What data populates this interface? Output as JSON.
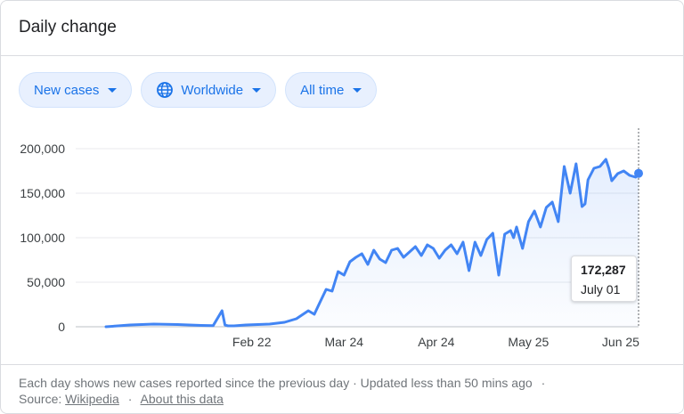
{
  "header": {
    "title": "Daily change"
  },
  "filters": [
    {
      "label": "New cases",
      "icon": ""
    },
    {
      "label": "Worldwide",
      "icon": "globe-icon"
    },
    {
      "label": "All time",
      "icon": ""
    }
  ],
  "colors": {
    "line": "#4285f4",
    "chip_bg": "#e8f0fe",
    "chip_text": "#1a73e8",
    "grid": "#e8eaed",
    "axis_text": "#3c4043"
  },
  "chart_data": {
    "type": "line",
    "title": "",
    "xlabel": "",
    "ylabel": "",
    "ylim": [
      0,
      200000
    ],
    "y_ticks": [
      "200,000",
      "150,000",
      "100,000",
      "50,000",
      "0"
    ],
    "x_ticks": [
      "Feb 22",
      "Mar 24",
      "Apr 24",
      "May 25",
      "Jun 25"
    ],
    "x_range": [
      "2020-01-04",
      "2020-07-01"
    ],
    "grid": true,
    "series": [
      {
        "x": [
          "2020-01-04",
          "2020-01-08",
          "2020-01-12",
          "2020-01-16",
          "2020-01-20",
          "2020-01-24",
          "2020-01-28",
          "2020-02-01",
          "2020-02-05",
          "2020-02-09",
          "2020-02-12",
          "2020-02-13",
          "2020-02-14",
          "2020-02-16",
          "2020-02-20",
          "2020-02-24",
          "2020-02-28",
          "2020-03-04",
          "2020-03-08",
          "2020-03-12",
          "2020-03-14",
          "2020-03-16",
          "2020-03-18",
          "2020-03-20",
          "2020-03-22",
          "2020-03-24",
          "2020-03-26",
          "2020-03-28",
          "2020-03-30",
          "2020-04-01",
          "2020-04-03",
          "2020-04-05",
          "2020-04-07",
          "2020-04-09",
          "2020-04-11",
          "2020-04-13",
          "2020-04-15",
          "2020-04-17",
          "2020-04-19",
          "2020-04-21",
          "2020-04-23",
          "2020-04-25",
          "2020-04-27",
          "2020-04-29",
          "2020-05-01",
          "2020-05-03",
          "2020-05-05",
          "2020-05-07",
          "2020-05-09",
          "2020-05-11",
          "2020-05-13",
          "2020-05-15",
          "2020-05-17",
          "2020-05-19",
          "2020-05-20",
          "2020-05-21",
          "2020-05-23",
          "2020-05-25",
          "2020-05-27",
          "2020-05-29",
          "2020-05-31",
          "2020-06-02",
          "2020-06-04",
          "2020-06-06",
          "2020-06-08",
          "2020-06-10",
          "2020-06-12",
          "2020-06-13",
          "2020-06-14",
          "2020-06-16",
          "2020-06-18",
          "2020-06-20",
          "2020-06-21",
          "2020-06-22",
          "2020-06-24",
          "2020-06-26",
          "2020-06-28",
          "2020-06-30",
          "2020-07-01"
        ],
        "values": [
          0,
          1000,
          2000,
          2500,
          3000,
          2800,
          2500,
          2000,
          1500,
          1200,
          18000,
          2000,
          1000,
          1000,
          2000,
          2500,
          3000,
          5000,
          9000,
          18000,
          14000,
          28000,
          42000,
          40000,
          62000,
          58000,
          73000,
          78000,
          82000,
          70000,
          86000,
          76000,
          72000,
          86000,
          88000,
          78000,
          84000,
          90000,
          80000,
          92000,
          88000,
          77000,
          86000,
          92000,
          82000,
          95000,
          63000,
          95000,
          80000,
          98000,
          105000,
          58000,
          104000,
          108000,
          100000,
          112000,
          88000,
          118000,
          130000,
          112000,
          134000,
          140000,
          118000,
          180000,
          150000,
          183000,
          135000,
          138000,
          165000,
          178000,
          180000,
          188000,
          178000,
          164000,
          172000,
          175000,
          170000,
          168000,
          172287
        ]
      }
    ],
    "annotation": {
      "value": "172,287",
      "date": "July 01"
    }
  },
  "footer": {
    "note": "Each day shows new cases reported since the previous day · Updated less than 50 mins ago",
    "source_label": "Source:",
    "source_link": "Wikipedia",
    "about_link": "About this data"
  }
}
